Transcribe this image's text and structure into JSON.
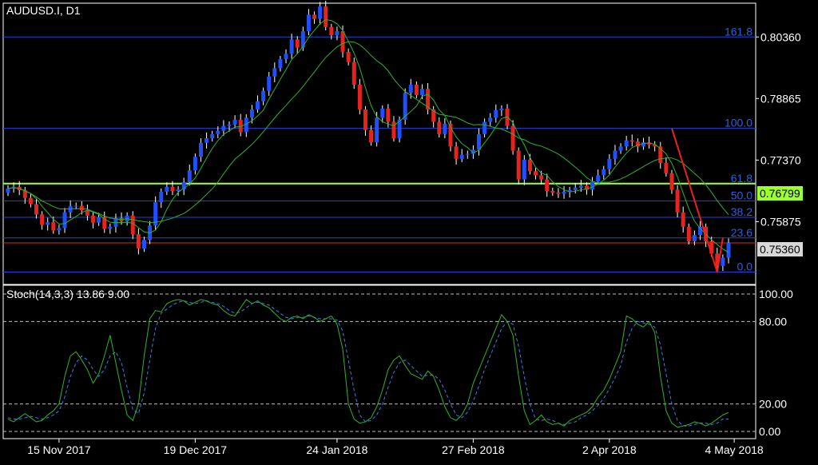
{
  "chart_title": "AUDUSD.I, D1",
  "price_last": "0.75360",
  "ma_tag": "0.76799",
  "colors": {
    "background": "#000000",
    "bull": "#1f4fff",
    "bear": "#e8231d",
    "ma_fast": "#2db32d",
    "ma_slow": "#2db32d",
    "fib_line": "#1e46d8",
    "fib_label": "#2e5fe0",
    "highlight_line": "#9cff2e",
    "price_line": "#e8231d",
    "stoch_main": "#2db32d",
    "stoch_signal": "#3a7fe0"
  },
  "chart_data": [
    {
      "type": "candlestick",
      "title": "AUDUSD.I, D1",
      "ylim": [
        0.7435,
        0.8118
      ],
      "y_ticks": [
        "0.80360",
        "0.78865",
        "0.77370",
        "0.75875"
      ],
      "y_tick_values": [
        0.8036,
        0.78865,
        0.7737,
        0.75875
      ],
      "x_ticks": [
        "15 Nov 2017",
        "19 Dec 2017",
        "24 Jan 2018",
        "27 Feb 2018",
        "2 Apr 2018",
        "4 May 2018"
      ],
      "x_tick_index": [
        9,
        33,
        58,
        82,
        106,
        128
      ],
      "fib_levels": [
        {
          "label": "161.8",
          "value": 0.8036
        },
        {
          "label": "100.0",
          "value": 0.7814
        },
        {
          "label": "61.8",
          "value": 0.7679
        },
        {
          "label": "50.0",
          "value": 0.7638
        },
        {
          "label": "38.2",
          "value": 0.7598
        },
        {
          "label": "23.6",
          "value": 0.7548
        },
        {
          "label": "0.0",
          "value": 0.7465
        }
      ],
      "horizontal_lines": [
        {
          "value": 0.76799,
          "label": "0.76799"
        },
        {
          "value": 0.7536,
          "label": "0.75360"
        }
      ],
      "closes": [
        0.7668,
        0.7672,
        0.7664,
        0.7645,
        0.763,
        0.7605,
        0.758,
        0.7586,
        0.7566,
        0.7572,
        0.761,
        0.7625,
        0.7626,
        0.7615,
        0.7602,
        0.7585,
        0.7598,
        0.757,
        0.7575,
        0.7596,
        0.7588,
        0.7602,
        0.7557,
        0.7522,
        0.7543,
        0.7578,
        0.7635,
        0.766,
        0.7672,
        0.7662,
        0.7666,
        0.7683,
        0.7712,
        0.7745,
        0.7779,
        0.779,
        0.78,
        0.7808,
        0.782,
        0.7823,
        0.7835,
        0.7805,
        0.784,
        0.786,
        0.788,
        0.7905,
        0.794,
        0.796,
        0.7982,
        0.7995,
        0.803,
        0.801,
        0.805,
        0.809,
        0.808,
        0.811,
        0.806,
        0.804,
        0.805,
        0.8,
        0.7975,
        0.792,
        0.786,
        0.781,
        0.778,
        0.784,
        0.7862,
        0.783,
        0.779,
        0.7835,
        0.79,
        0.792,
        0.7895,
        0.791,
        0.786,
        0.783,
        0.78,
        0.7825,
        0.777,
        0.774,
        0.775,
        0.7752,
        0.7762,
        0.78,
        0.783,
        0.784,
        0.7858,
        0.7862,
        0.782,
        0.776,
        0.769,
        0.7738,
        0.771,
        0.77,
        0.769,
        0.7662,
        0.7658,
        0.7655,
        0.766,
        0.7664,
        0.767,
        0.7675,
        0.7665,
        0.7685,
        0.77,
        0.7715,
        0.774,
        0.776,
        0.777,
        0.7785,
        0.7782,
        0.777,
        0.778,
        0.7775,
        0.777,
        0.773,
        0.7705,
        0.7665,
        0.761,
        0.7575,
        0.754,
        0.7555,
        0.7575,
        0.754,
        0.751,
        0.748,
        0.75,
        0.7536
      ]
    },
    {
      "type": "line",
      "title": "Stoch(14,3,3) 13.86 9.00",
      "ylim": [
        0,
        100
      ],
      "y_ticks": [
        "100.00",
        "80.00",
        "20.00",
        "0.00"
      ],
      "y_tick_values": [
        100,
        80,
        20,
        0
      ],
      "series": [
        {
          "name": "",
          "values": [
            9,
            7,
            10,
            13,
            10,
            7,
            8,
            12,
            15,
            20,
            40,
            55,
            58,
            52,
            45,
            35,
            42,
            55,
            70,
            50,
            30,
            12,
            8,
            20,
            55,
            82,
            88,
            87,
            93,
            95,
            96,
            95,
            92,
            94,
            96,
            95,
            93,
            92,
            88,
            85,
            84,
            90,
            96,
            93,
            95,
            92,
            90,
            86,
            82,
            80,
            83,
            84,
            82,
            85,
            83,
            80,
            82,
            84,
            78,
            60,
            20,
            9,
            6,
            7,
            10,
            18,
            30,
            45,
            52,
            55,
            48,
            42,
            40,
            38,
            44,
            40,
            30,
            18,
            10,
            8,
            12,
            20,
            35,
            45,
            55,
            65,
            75,
            85,
            80,
            70,
            40,
            15,
            5,
            8,
            12,
            7,
            5,
            6,
            4,
            8,
            10,
            12,
            14,
            18,
            25,
            30,
            38,
            48,
            58,
            84,
            82,
            78,
            76,
            80,
            72,
            40,
            15,
            6,
            3,
            4,
            5,
            7,
            6,
            4,
            6,
            9,
            12,
            13.86
          ]
        },
        {
          "name": "",
          "values": [
            10,
            9,
            9,
            10,
            11,
            10,
            9,
            10,
            12,
            15,
            25,
            40,
            50,
            55,
            52,
            45,
            40,
            45,
            55,
            58,
            50,
            32,
            16,
            13,
            28,
            52,
            75,
            86,
            89,
            92,
            94,
            95,
            94,
            93,
            94,
            95,
            94,
            93,
            91,
            88,
            86,
            87,
            90,
            93,
            94,
            93,
            92,
            89,
            86,
            83,
            82,
            83,
            83,
            84,
            83,
            82,
            82,
            82,
            81,
            73,
            52,
            30,
            12,
            7,
            8,
            12,
            20,
            32,
            43,
            50,
            52,
            48,
            44,
            40,
            41,
            41,
            38,
            30,
            20,
            12,
            10,
            14,
            22,
            33,
            45,
            55,
            65,
            75,
            80,
            78,
            62,
            40,
            20,
            9,
            8,
            9,
            8,
            6,
            5,
            6,
            7,
            10,
            12,
            15,
            19,
            24,
            31,
            39,
            48,
            65,
            75,
            80,
            79,
            78,
            76,
            63,
            42,
            20,
            8,
            4,
            4,
            5,
            6,
            6,
            5,
            6,
            9,
            9.0
          ]
        }
      ]
    }
  ]
}
